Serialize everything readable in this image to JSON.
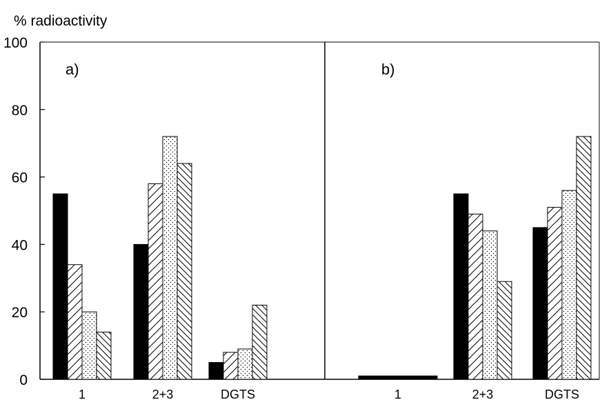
{
  "chart_data": {
    "type": "bar",
    "ylabel": "% radioactivity",
    "ylim": [
      0,
      100
    ],
    "yticks": [
      0,
      20,
      40,
      60,
      80,
      100
    ],
    "categories": [
      "1",
      "2+3",
      "DGTS"
    ],
    "fills": [
      "solid-black",
      "diagonal-hatch",
      "dotted",
      "back-diagonal-hatch"
    ],
    "grid": false,
    "legend": "none",
    "panels": [
      {
        "label": "a)",
        "series": [
          {
            "values": [
              55,
              40,
              5
            ]
          },
          {
            "values": [
              34,
              58,
              8
            ]
          },
          {
            "values": [
              20,
              72,
              9
            ]
          },
          {
            "values": [
              14,
              64,
              22
            ]
          }
        ]
      },
      {
        "label": "b)",
        "series": [
          {
            "values": [
              1,
              55,
              45
            ]
          },
          {
            "values": [
              null,
              49,
              51
            ]
          },
          {
            "values": [
              null,
              44,
              56
            ]
          },
          {
            "values": [
              null,
              29,
              72
            ]
          }
        ]
      }
    ]
  }
}
